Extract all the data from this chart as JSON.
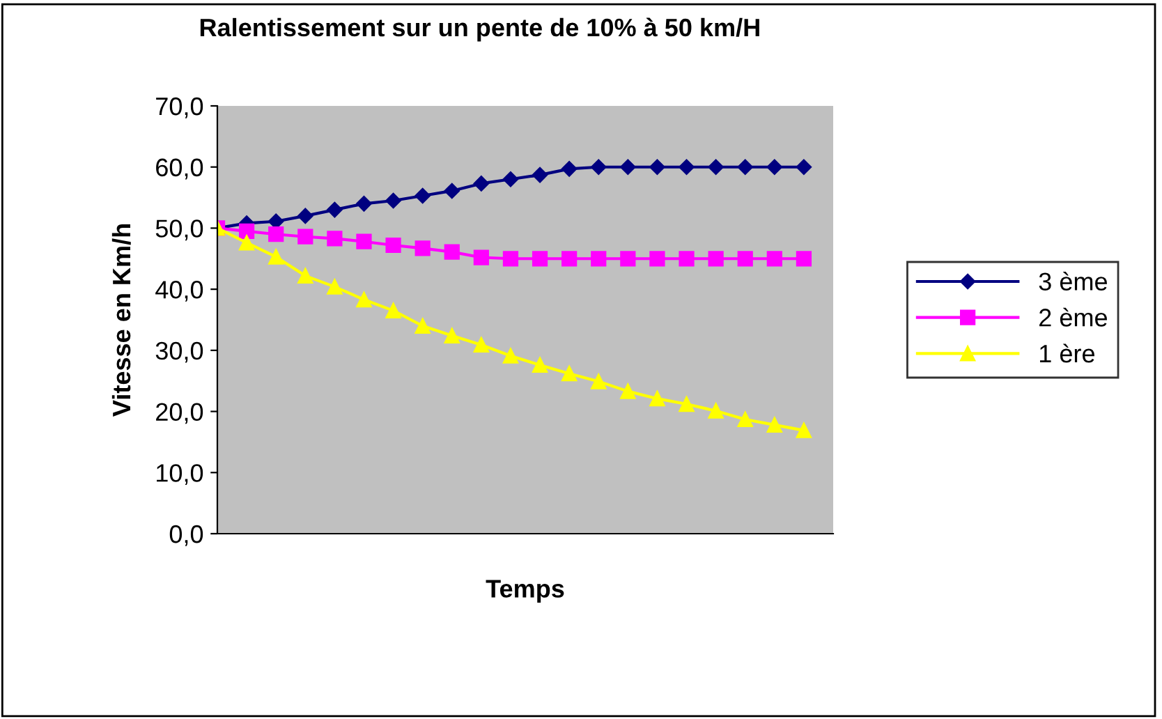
{
  "chart_data": {
    "type": "line",
    "title": "Ralentissement sur un pente de 10% à 50 km/H",
    "xlabel": "Temps",
    "ylabel": "Vitesse en Km/h",
    "categories": [
      null,
      null,
      null,
      null,
      null,
      null,
      null,
      null,
      null,
      null,
      null,
      null,
      null,
      null,
      null,
      null,
      null,
      null,
      null,
      null,
      null
    ],
    "series": [
      {
        "name": "3 ème",
        "color": "#000080",
        "marker": "diamond",
        "values": [
          50,
          50.8,
          51.1,
          52,
          53,
          54,
          54.5,
          55.3,
          56.1,
          57.3,
          58,
          58.7,
          59.7,
          60,
          60,
          60,
          60,
          60,
          60,
          60,
          60
        ]
      },
      {
        "name": "2 ème",
        "color": "#ff00ff",
        "marker": "square",
        "values": [
          50,
          49.5,
          49,
          48.6,
          48.3,
          47.8,
          47.2,
          46.7,
          46.1,
          45.2,
          45,
          45,
          45,
          45,
          45,
          45,
          45,
          45,
          45,
          45,
          45
        ]
      },
      {
        "name": "1 ère",
        "color": "#ffff00",
        "marker": "triangle",
        "values": [
          50,
          47.6,
          45.3,
          42.2,
          40.4,
          38.3,
          36.5,
          34,
          32.4,
          30.9,
          29.1,
          27.6,
          26.2,
          24.9,
          23.3,
          22.1,
          21.2,
          20.1,
          18.7,
          17.8,
          16.9
        ]
      }
    ],
    "ylim": [
      0,
      70
    ],
    "yticks": [
      {
        "value": 0,
        "label": "0,0"
      },
      {
        "value": 10,
        "label": "10,0"
      },
      {
        "value": 20,
        "label": "20,0"
      },
      {
        "value": 30,
        "label": "30,0"
      },
      {
        "value": 40,
        "label": "40,0"
      },
      {
        "value": 50,
        "label": "50,0"
      },
      {
        "value": 60,
        "label": "60,0"
      },
      {
        "value": 70,
        "label": "70,0"
      }
    ],
    "grid": false,
    "legend": "right",
    "line_style": "solid"
  }
}
